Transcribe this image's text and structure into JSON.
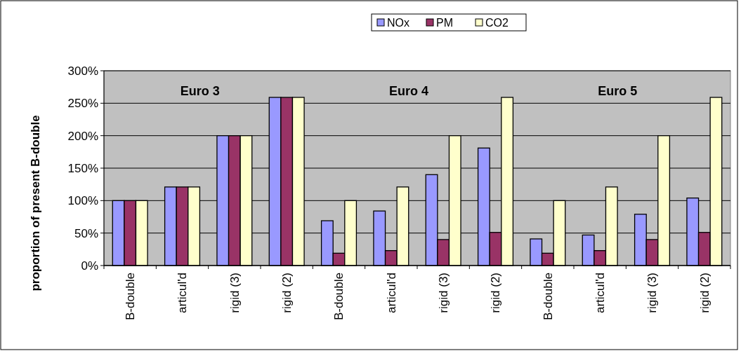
{
  "chart_data": {
    "type": "bar",
    "ylabel": "proportion of present B-double",
    "categories": [
      "B-double",
      "articul'd",
      "rigid (3)",
      "rigid (2)",
      "B-double",
      "articul'd",
      "rigid (3)",
      "rigid (2)",
      "B-double",
      "articul'd",
      "rigid (3)",
      "rigid (2)"
    ],
    "series": [
      {
        "name": "NOx",
        "color": "#9999ff",
        "values": [
          100,
          121,
          200,
          259,
          69,
          84,
          140,
          181,
          41,
          47,
          79,
          104
        ]
      },
      {
        "name": "PM",
        "color": "#993366",
        "values": [
          100,
          121,
          200,
          259,
          19,
          23,
          40,
          51,
          19,
          23,
          40,
          51
        ]
      },
      {
        "name": "CO2",
        "color": "#ffffcc",
        "values": [
          100,
          121,
          200,
          259,
          100,
          121,
          200,
          259,
          100,
          121,
          200,
          259
        ]
      }
    ],
    "annotations": [
      "Euro 3",
      "Euro 4",
      "Euro 5"
    ],
    "ylim": [
      0,
      300
    ],
    "yticks": [
      {
        "value": 0,
        "label": "0%"
      },
      {
        "value": 50,
        "label": "50%"
      },
      {
        "value": 100,
        "label": "100%"
      },
      {
        "value": 150,
        "label": "150%"
      },
      {
        "value": 200,
        "label": "200%"
      },
      {
        "value": 250,
        "label": "250%"
      },
      {
        "value": 300,
        "label": "300%"
      }
    ],
    "grid": "y",
    "legend": "top"
  }
}
